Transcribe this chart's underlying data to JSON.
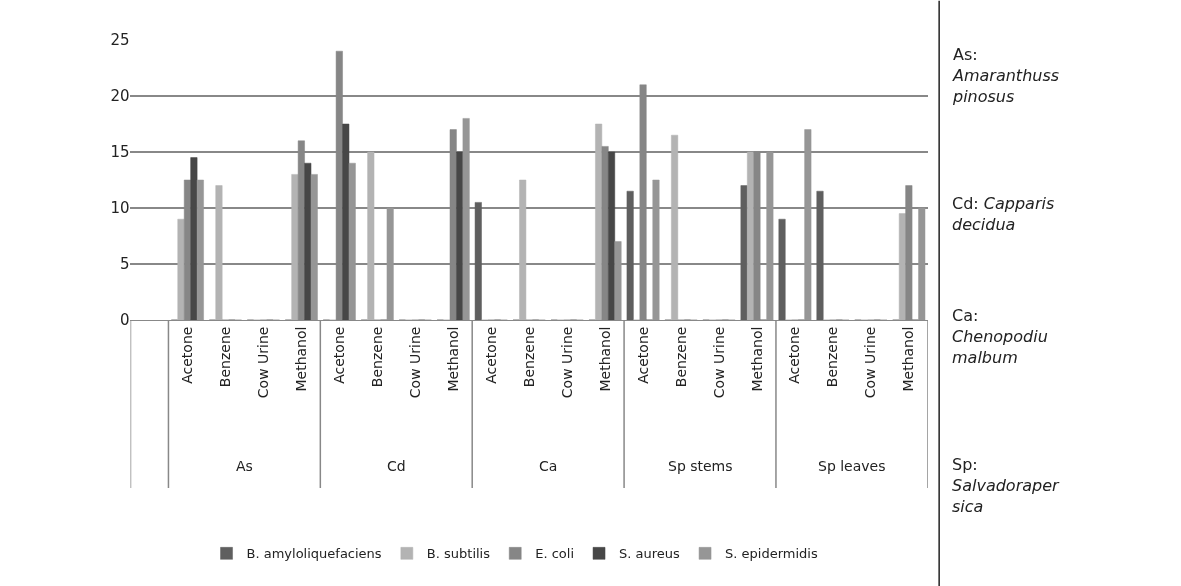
{
  "chart_data": {
    "type": "bar",
    "categories": [
      null,
      "Acetone",
      "Benzene",
      "Cow Urine",
      "Methanol",
      "Acetone",
      "Benzene",
      "Cow Urine",
      "Methanol",
      "Acetone",
      "Benzene",
      "Cow Urine",
      "Methanol",
      "Acetone",
      "Benzene",
      "Cow Urine",
      "Methanol",
      "Acetone",
      "Benzene",
      "Cow Urine",
      "Methanol"
    ],
    "series": [
      {
        "name": "B. amyloliquefaciens",
        "color": "#5f5f5f",
        "values": [
          null,
          0,
          0,
          0,
          0,
          0,
          0,
          0,
          0,
          10.5,
          0,
          0,
          0,
          11.5,
          0,
          0,
          12,
          9,
          11.5,
          0,
          0
        ]
      },
      {
        "name": "B. subtilis",
        "color": "#b3b3b3",
        "values": [
          null,
          9,
          12,
          0,
          13,
          0,
          15,
          0,
          0,
          0,
          12.5,
          0,
          17.5,
          0,
          16.5,
          0,
          15,
          0,
          0,
          0,
          9.5
        ]
      },
      {
        "name": "E. coli",
        "color": "#868686",
        "values": [
          null,
          12.5,
          0,
          0,
          16,
          24,
          0,
          0,
          17,
          0,
          0,
          0,
          15.5,
          21,
          0,
          0,
          15,
          0,
          0,
          0,
          12
        ]
      },
      {
        "name": "S. aureus",
        "color": "#474747",
        "values": [
          null,
          14.5,
          0,
          0,
          14,
          17.5,
          0,
          0,
          15,
          0,
          0,
          0,
          15,
          0,
          0,
          0,
          0,
          0,
          0,
          0,
          0
        ]
      },
      {
        "name": "S. epidermidis",
        "color": "#969696",
        "values": [
          null,
          12.5,
          0,
          0,
          13,
          14,
          10,
          0,
          18,
          0,
          0,
          0,
          7,
          12.5,
          0,
          0,
          15,
          17,
          0,
          0,
          10
        ]
      }
    ],
    "ylim": [
      0,
      25
    ],
    "yticks": [
      0,
      5,
      10,
      15,
      20,
      25
    ],
    "grid": "y",
    "legend": "bottom",
    "annotations": [
      "As",
      "Cd",
      "Ca",
      "Sp stems",
      "Sp leaves",
      "As:\nAmaranthuss\npinosus",
      "Cd: Capparis\ndecidua",
      "Ca:\nChenopodiu\nmalbum",
      "Sp:\nSalvadoraper\nsica"
    ]
  }
}
